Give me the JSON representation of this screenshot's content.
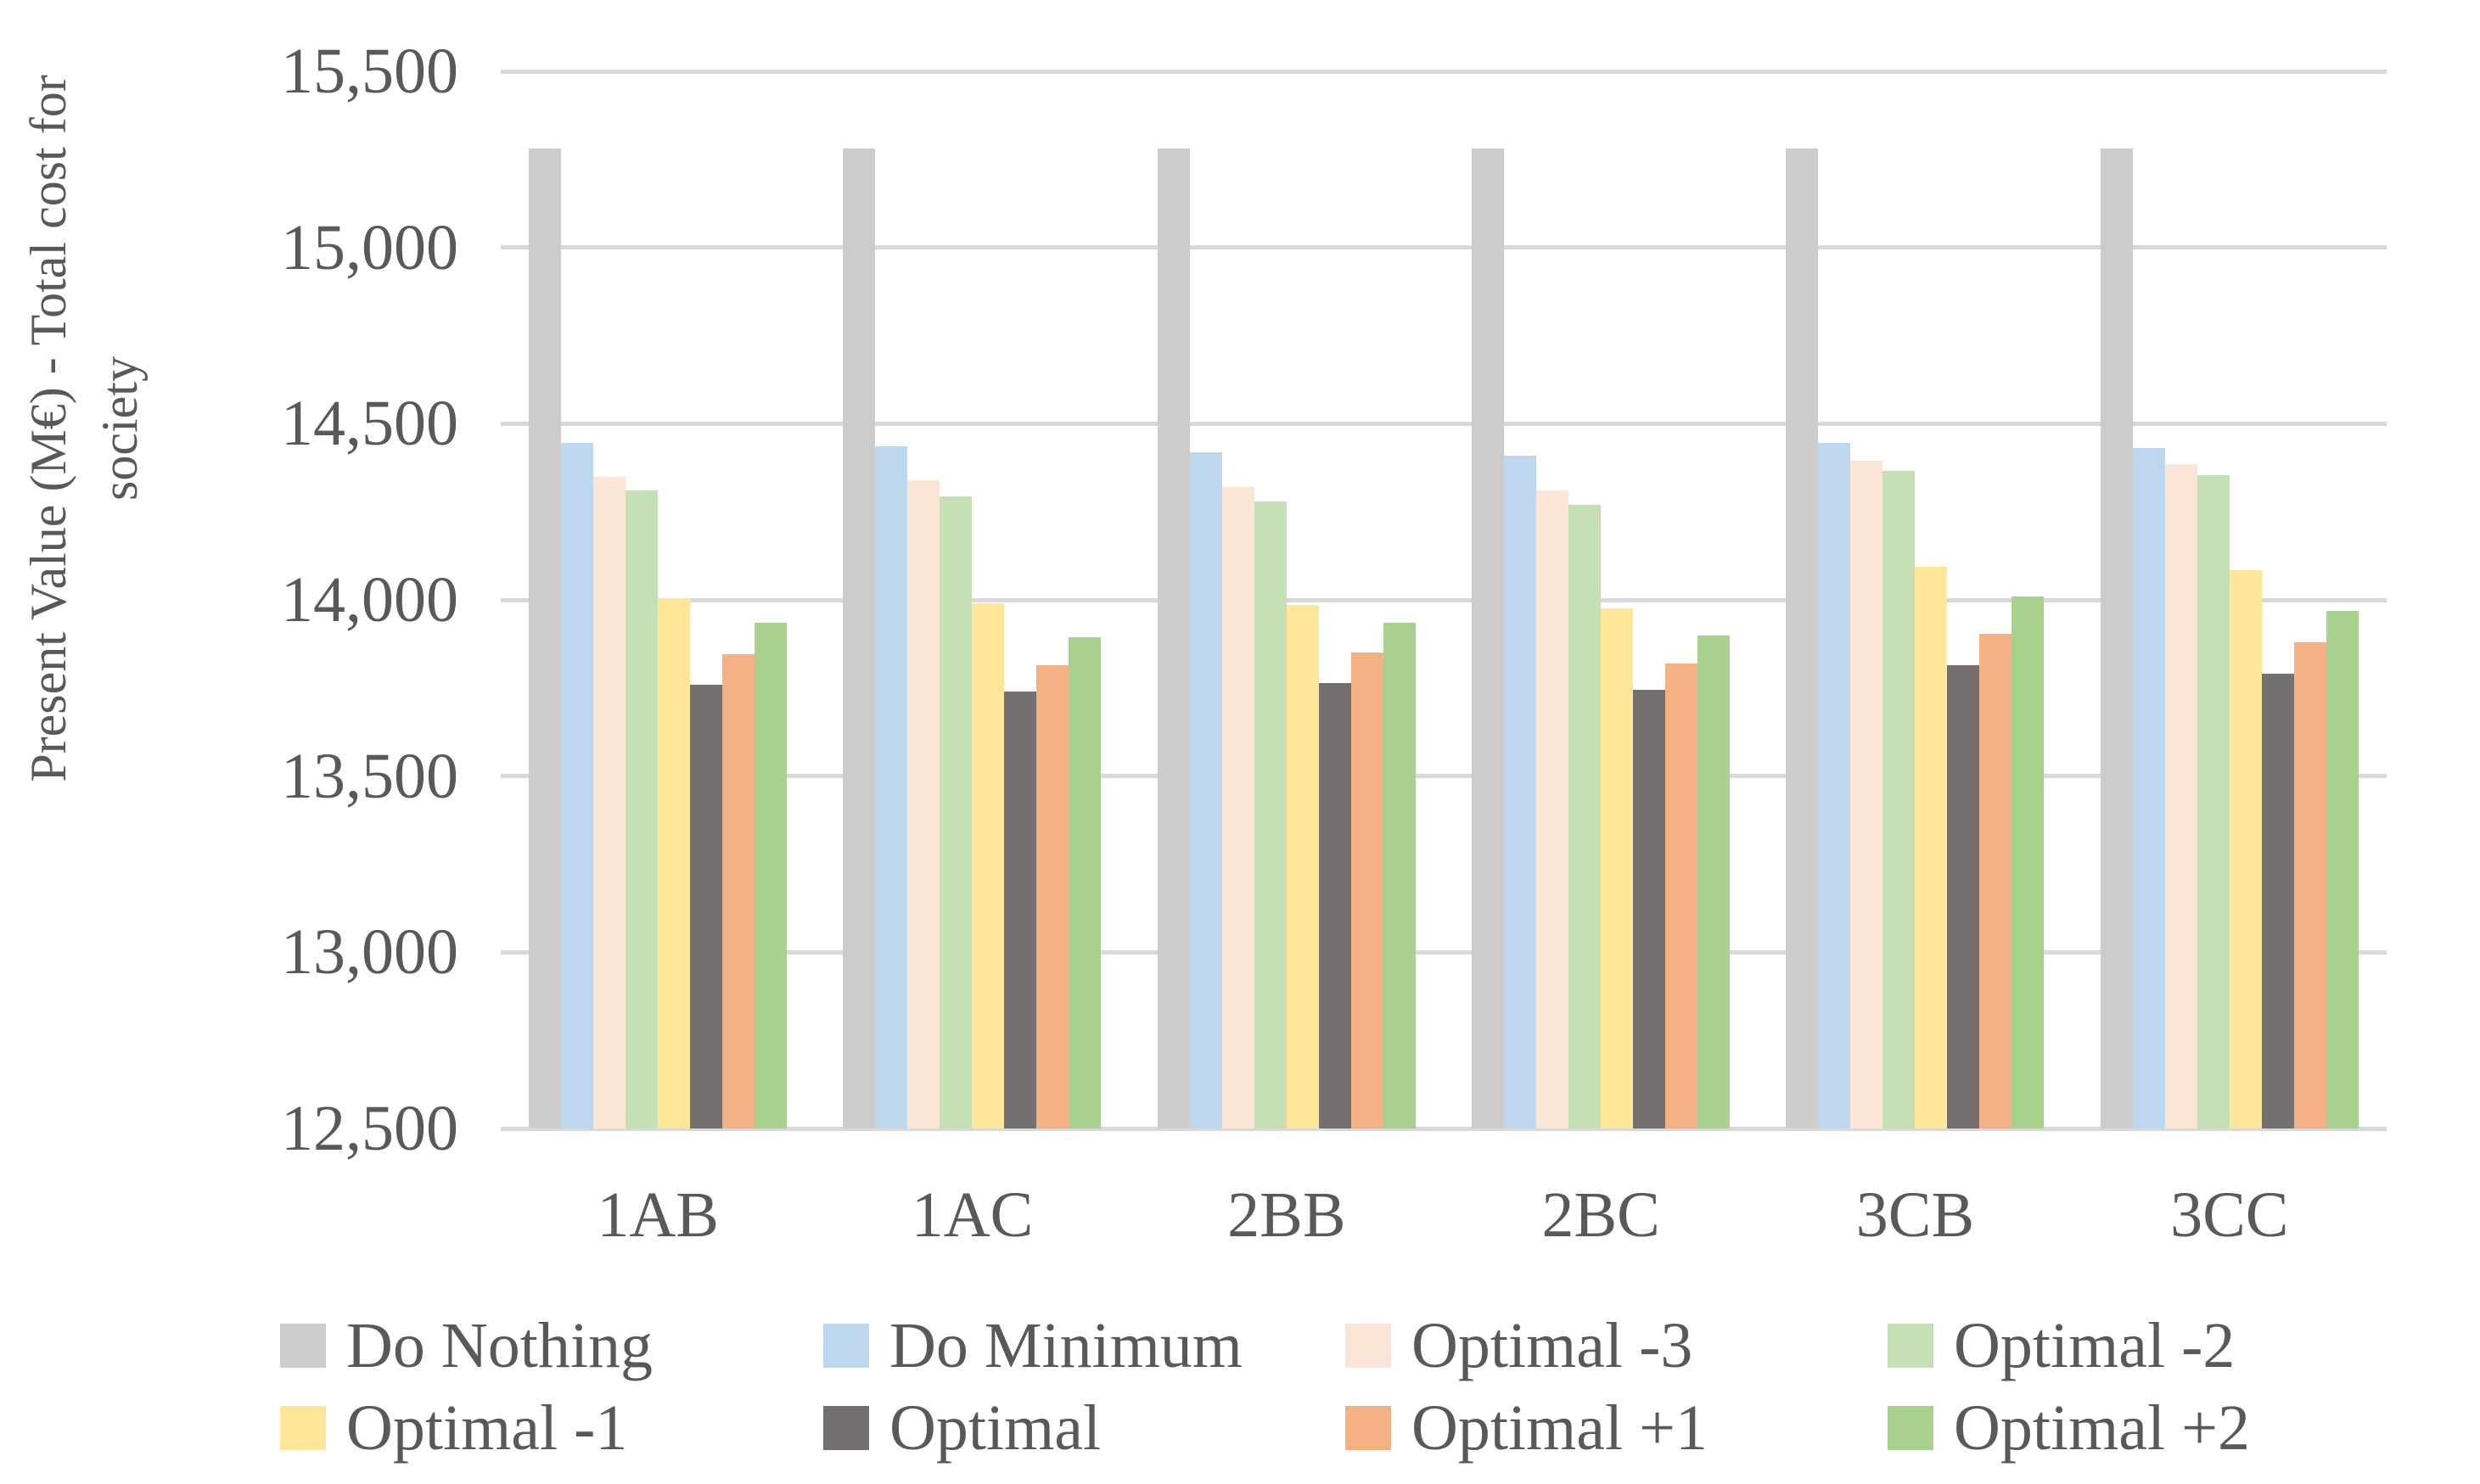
{
  "meta": {
    "text_color": "#595959",
    "gridline_color": "#D9D9D9",
    "background_color": "#FFFFFF"
  },
  "chart_data": {
    "type": "bar",
    "title": "",
    "xlabel": "",
    "ylabel": "Present Value (M€) - Total cost for society",
    "ylim": [
      12500,
      15500
    ],
    "ytick_values": [
      12500,
      13000,
      13500,
      14000,
      14500,
      15000,
      15500
    ],
    "ytick_labels": [
      "12,500",
      "13,000",
      "13,500",
      "14,000",
      "14,500",
      "15,000",
      "15,500"
    ],
    "grid": "horizontal gridlines on",
    "legend_position": "bottom",
    "categories": [
      "1AB",
      "1AC",
      "2BB",
      "2BC",
      "3CB",
      "3CC"
    ],
    "series": [
      {
        "name": "Do Nothing",
        "color": "#CECCCB",
        "values": [
          15280,
          15280,
          15280,
          15280,
          15280,
          15280
        ]
      },
      {
        "name": "Do Minimum",
        "color": "#BDD7EE",
        "values": [
          14445,
          14435,
          14420,
          14410,
          14445,
          14430
        ]
      },
      {
        "name": "Optimal -3",
        "color": "#FBE5D6",
        "values": [
          14350,
          14340,
          14320,
          14310,
          14395,
          14385
        ]
      },
      {
        "name": "Optimal -2",
        "color": "#C5E0B4",
        "values": [
          14310,
          14295,
          14280,
          14270,
          14365,
          14355
        ]
      },
      {
        "name": "Optimal -1",
        "color": "#FFE699",
        "values": [
          14005,
          13990,
          13985,
          13975,
          14095,
          14085
        ]
      },
      {
        "name": "Optimal",
        "color": "#747070",
        "values": [
          13760,
          13740,
          13765,
          13745,
          13815,
          13790
        ]
      },
      {
        "name": "Optimal +1",
        "color": "#F4B183",
        "values": [
          13845,
          13815,
          13850,
          13820,
          13905,
          13880
        ]
      },
      {
        "name": "Optimal +2",
        "color": "#A9D18E",
        "values": [
          13935,
          13895,
          13935,
          13900,
          14010,
          13970
        ]
      }
    ]
  }
}
